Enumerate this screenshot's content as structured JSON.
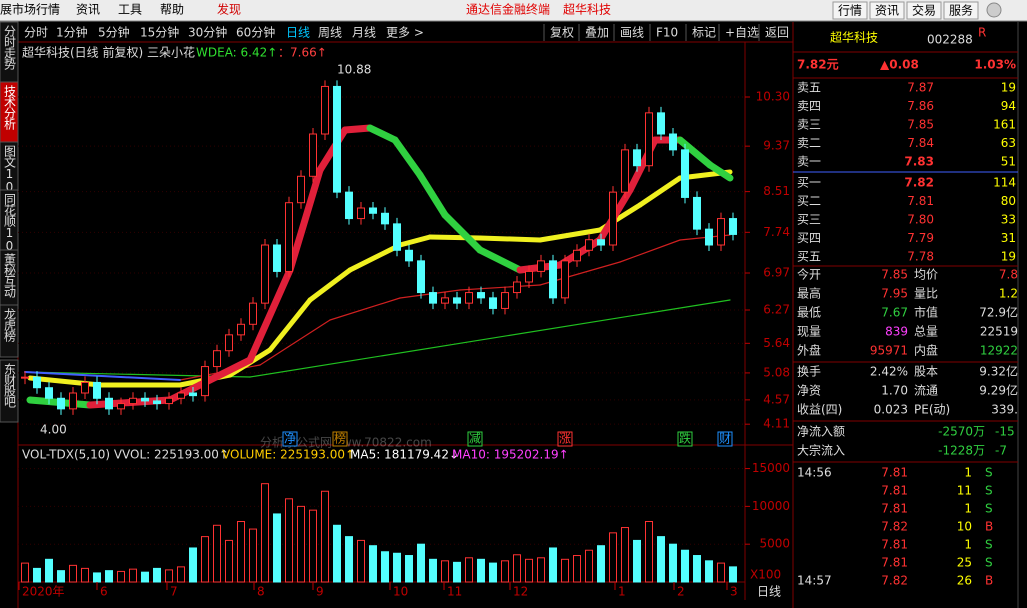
{
  "menu": [
    "展市场行情",
    "资讯",
    "工具",
    "帮助"
  ],
  "menu_highlight": "发现",
  "header_title": "通达信金融终端",
  "header_stock": "超华科技",
  "top_buttons": [
    "行情",
    "资讯",
    "交易",
    "服务"
  ],
  "side_tabs": [
    "分时走势",
    "技术分析",
    "图文10",
    "同花顺10",
    "董秘互动",
    "龙虎榜",
    "东财股吧"
  ],
  "periods": [
    "分时",
    "1分钟",
    "5分钟",
    "15分钟",
    "30分钟",
    "60分钟",
    "日线",
    "周线",
    "月线",
    "更多 >"
  ],
  "tools": [
    "复权",
    "叠加",
    "画线",
    "F10",
    "标记",
    "+自选",
    "返回"
  ],
  "chart_info": {
    "title": "超华科技(日线 前复权) 三朵小花",
    "wdea": "WDEA: 6.42↑",
    "second": "：7.66↑"
  },
  "price_chart": {
    "type": "candlestick",
    "closes": [
      5.0,
      4.8,
      4.6,
      4.4,
      4.7,
      4.9,
      4.6,
      4.4,
      4.5,
      4.6,
      4.55,
      4.5,
      4.6,
      4.7,
      4.65,
      5.2,
      5.5,
      5.8,
      6.0,
      6.4,
      7.5,
      7.0,
      8.3,
      8.8,
      9.6,
      10.5,
      8.5,
      8.0,
      8.2,
      8.1,
      7.9,
      7.4,
      7.2,
      6.6,
      6.4,
      6.5,
      6.4,
      6.6,
      6.5,
      6.3,
      6.6,
      6.8,
      7.0,
      7.2,
      6.5,
      7.2,
      7.4,
      7.6,
      7.5,
      8.5,
      9.3,
      9.0,
      10.0,
      9.6,
      9.3,
      8.4,
      7.8,
      7.5,
      8.0,
      7.7
    ],
    "ylim": [
      4.0,
      11.0
    ],
    "yticks": [
      {
        "value": 10.3,
        "label": "10.30"
      },
      9.37,
      8.51,
      7.74,
      6.97,
      6.27,
      5.64,
      5.08,
      4.57,
      4.11
    ],
    "high_label": "10.88",
    "low_label": "4.00",
    "signals": [
      "净",
      "榜",
      "减",
      "涨",
      "跌",
      "财"
    ],
    "watermark": "分析家公式网www.70822.com"
  },
  "volume_chart": {
    "type": "bar",
    "header": [
      "VOL-TDX(5,10)  VVOL: 225193.00↑",
      "VOLUME: 225193.00↑",
      "MA5: 181179.42↓",
      "MA10: 195202.19↑"
    ],
    "values": [
      2500,
      1800,
      3000,
      1500,
      2200,
      1800,
      1200,
      1500,
      1400,
      1700,
      1300,
      1800,
      1600,
      2000,
      4500,
      6000,
      7500,
      5500,
      8000,
      7000,
      13000,
      9000,
      11000,
      10000,
      9500,
      12000,
      7500,
      6000,
      5500,
      4800,
      4000,
      3800,
      3500,
      5000,
      3000,
      2800,
      2600,
      3200,
      3000,
      2500,
      2800,
      3600,
      3000,
      3200,
      4500,
      3000,
      3500,
      4200,
      4800,
      6500,
      7200,
      5500,
      8000,
      6000,
      5000,
      4200,
      3500,
      2800,
      2500,
      2000
    ],
    "ylim": [
      0,
      16000
    ],
    "yticks": [
      5000,
      10000,
      15000
    ],
    "unit": "X100"
  },
  "x_axis": {
    "labels": [
      "2020年",
      "6",
      "7",
      "8",
      "9",
      "10",
      "11",
      "12",
      "1",
      "2",
      "3"
    ],
    "period": "日线"
  },
  "quote": {
    "name": "超华科技",
    "code": "002288",
    "flag": "R",
    "price": "7.82元",
    "change": "▲0.08",
    "pct": "1.03%",
    "asks": [
      [
        "卖五",
        "7.87",
        "19"
      ],
      [
        "卖四",
        "7.86",
        "94"
      ],
      [
        "卖三",
        "7.85",
        "161"
      ],
      [
        "卖二",
        "7.84",
        "63"
      ],
      [
        "卖一",
        "7.83",
        "51"
      ]
    ],
    "bids": [
      [
        "买一",
        "7.82",
        "114"
      ],
      [
        "买二",
        "7.81",
        "80"
      ],
      [
        "买三",
        "7.80",
        "33"
      ],
      [
        "买四",
        "7.79",
        "31"
      ],
      [
        "买五",
        "7.78",
        "19"
      ]
    ],
    "stats": [
      [
        "今开",
        "7.85",
        "均价",
        "7.8"
      ],
      [
        "最高",
        "7.95",
        "量比",
        "1.2"
      ],
      [
        "最低",
        "7.67",
        "市值",
        "72.9亿"
      ],
      [
        "现量",
        "839",
        "总量",
        "22519"
      ],
      [
        "外盘",
        "95971",
        "内盘",
        "12922"
      ]
    ],
    "stats2": [
      [
        "换手",
        "2.42%",
        "股本",
        "9.32亿"
      ],
      [
        "净资",
        "1.70",
        "流通",
        "9.29亿"
      ],
      [
        "收益(四)",
        "0.023",
        "PE(动)",
        "339."
      ]
    ],
    "flows": [
      [
        "净流入额",
        "-2570万",
        "-15"
      ],
      [
        "大宗流入",
        "-1228万",
        "-7"
      ]
    ],
    "ticks": [
      [
        "14:56",
        "7.81",
        "1",
        "S"
      ],
      [
        null,
        "7.81",
        "11",
        "S"
      ],
      [
        null,
        "7.81",
        "1",
        "S"
      ],
      [
        null,
        "7.82",
        "10",
        "B"
      ],
      [
        null,
        "7.81",
        "1",
        "S"
      ],
      [
        null,
        "7.81",
        "25",
        "S"
      ],
      [
        "14:57",
        "7.82",
        "26",
        "B"
      ]
    ]
  }
}
